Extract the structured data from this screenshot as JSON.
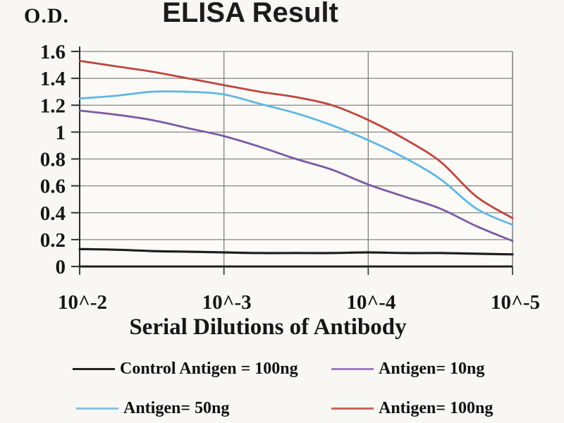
{
  "chart_data": {
    "type": "line",
    "title": "ELISA Result",
    "ylabel": "O.D.",
    "xlabel": "Serial Dilutions of Antibody",
    "x_axis_kind": "serial dilution (log10 exponent)",
    "x_tick_labels": [
      "10^-2",
      "10^-3",
      "10^-4",
      "10^-5"
    ],
    "x_tick_exponents": [
      -2,
      -3,
      -4,
      -5
    ],
    "xlim_exponents": [
      -2,
      -5
    ],
    "y_tick_labels": [
      "0",
      "0.2",
      "0.4",
      "0.6",
      "0.8",
      "1",
      "1.2",
      "1.4",
      "1.6"
    ],
    "y_ticks": [
      0,
      0.2,
      0.4,
      0.6,
      0.8,
      1,
      1.2,
      1.4,
      1.6
    ],
    "ylim": [
      0,
      1.6
    ],
    "grid": true,
    "legend_position": "bottom",
    "x_exponents": [
      -2,
      -2.25,
      -2.5,
      -2.75,
      -3,
      -3.25,
      -3.5,
      -3.75,
      -4,
      -4.25,
      -4.5,
      -4.75,
      -5
    ],
    "series": [
      {
        "name": "Control Antigen = 100ng",
        "color": "#1f1f1f",
        "legend_color": "#1f1f1f",
        "values": [
          0.13,
          0.125,
          0.115,
          0.11,
          0.105,
          0.1,
          0.1,
          0.1,
          0.105,
          0.1,
          0.1,
          0.095,
          0.09
        ]
      },
      {
        "name": "Antigen= 10ng",
        "color": "#7b5ba3",
        "legend_color": "#9c7fc0",
        "values": [
          1.16,
          1.13,
          1.09,
          1.03,
          0.97,
          0.89,
          0.8,
          0.72,
          0.61,
          0.52,
          0.43,
          0.3,
          0.19
        ]
      },
      {
        "name": "Antigen= 50ng",
        "color": "#5fb6e2",
        "legend_color": "#8cc2e4",
        "values": [
          1.25,
          1.27,
          1.3,
          1.3,
          1.28,
          1.21,
          1.14,
          1.05,
          0.94,
          0.81,
          0.65,
          0.43,
          0.31
        ]
      },
      {
        "name": "Antigen= 100ng",
        "color": "#c0453e",
        "legend_color": "#c8685f",
        "values": [
          1.53,
          1.49,
          1.45,
          1.4,
          1.35,
          1.3,
          1.26,
          1.2,
          1.09,
          0.95,
          0.78,
          0.52,
          0.36
        ]
      }
    ],
    "colors": {
      "grid": "#858585",
      "axis": "#1f1f1f",
      "background": "#f9f7f3",
      "plot_background": "#fbfaf7",
      "text": "#161616"
    }
  }
}
